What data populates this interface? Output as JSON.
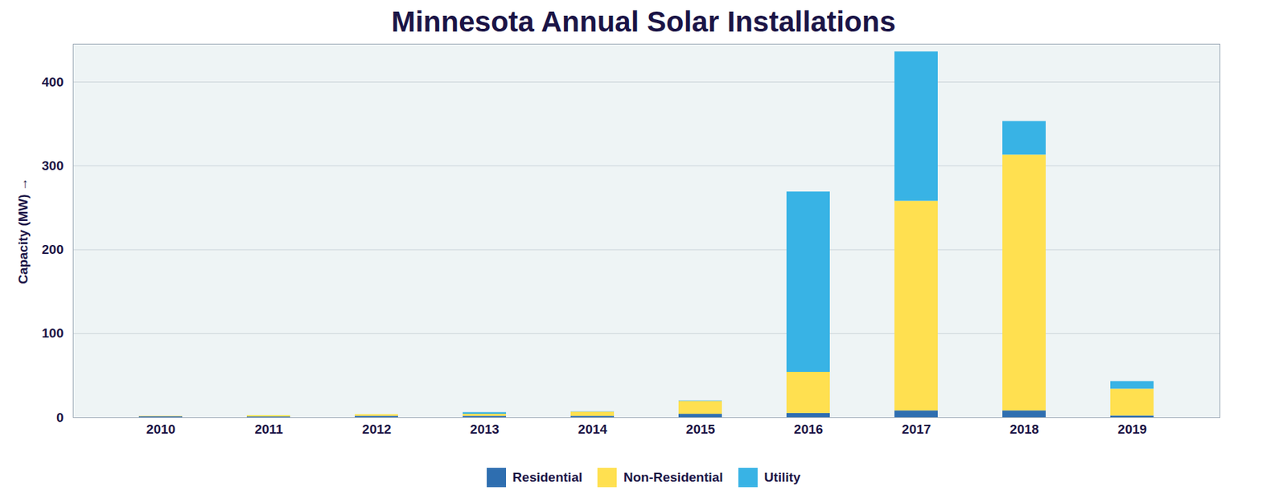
{
  "chart_data": {
    "type": "bar",
    "title": "Minnesota Annual Solar Installations",
    "y_label": "Capacity (MW)",
    "categories": [
      "2010",
      "2011",
      "2012",
      "2013",
      "2014",
      "2015",
      "2016",
      "2017",
      "2018",
      "2019"
    ],
    "series": [
      {
        "name": "Residential",
        "color": "#2e6eb0",
        "values": [
          1.2,
          0.8,
          1.5,
          1.5,
          1.5,
          4,
          5,
          8,
          8,
          2
        ]
      },
      {
        "name": "Non-Residential",
        "color": "#ffe050",
        "values": [
          0.5,
          1.5,
          2,
          2.5,
          5,
          15.4,
          49,
          250,
          305,
          32
        ]
      },
      {
        "name": "Utility",
        "color": "#38b3e5",
        "values": [
          0,
          0,
          0,
          2,
          0.3,
          0.5,
          215,
          178,
          40,
          9
        ]
      }
    ],
    "stacked": true,
    "ylim": [
      0,
      445
    ],
    "yticks": [
      0,
      100,
      200,
      300,
      400
    ],
    "grid": true,
    "legend": "bottom"
  }
}
